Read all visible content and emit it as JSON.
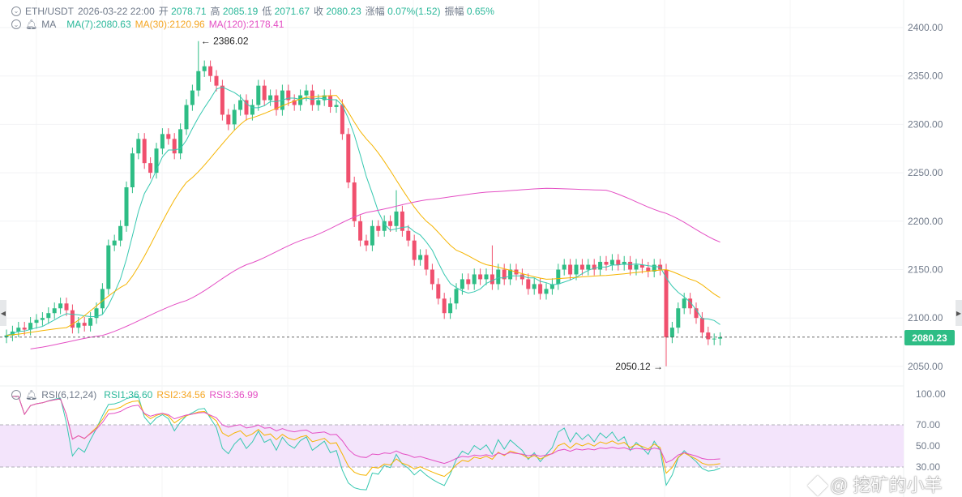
{
  "header": {
    "symbol": "ETH/USDT",
    "datetime": "2026-03-22 22:00",
    "open_label": "开",
    "open": "2078.71",
    "high_label": "高",
    "high": "2085.19",
    "low_label": "低",
    "low": "2071.67",
    "close_label": "收",
    "close": "2080.23",
    "change_label": "涨幅",
    "change": "0.07%(1.52)",
    "amplitude_label": "振幅",
    "amplitude": "0.65%"
  },
  "ma_legend": {
    "name": "MA",
    "ma7": "MA(7):2080.63",
    "ma30": "MA(30):2120.96",
    "ma120": "MA(120):2178.41"
  },
  "rsi_legend": {
    "name": "RSI(6,12,24)",
    "rsi1": "RSI1:36.60",
    "rsi2": "RSI2:34.56",
    "rsi3": "RSI3:36.99"
  },
  "price_axis": [
    "2400.00",
    "2350.00",
    "2300.00",
    "2250.00",
    "2200.00",
    "2150.00",
    "2100.00",
    "2050.00"
  ],
  "rsi_axis": [
    "100.00",
    "70.00",
    "50.00",
    "30.00"
  ],
  "current_price": "2080.23",
  "max_marker": "2386.02",
  "min_marker": "2050.12",
  "watermark": "@ 挖矿的小羊",
  "colors": {
    "up": "#2ebd85",
    "down": "#f0506e",
    "ma7": "#36c8b0",
    "ma30": "#f5b400",
    "ma120": "#e44fc4",
    "rsi_band": "#f3e4fb"
  },
  "chart_data": {
    "type": "candlestick",
    "title": "ETH/USDT",
    "ylim": [
      2050,
      2400
    ],
    "rsi_ylim": [
      0,
      100
    ],
    "open": [
      2080,
      2082,
      2086,
      2090,
      2088,
      2095,
      2098,
      2100,
      2105,
      2110,
      2115,
      2108,
      2090,
      2095,
      2092,
      2100,
      2110,
      2130,
      2175,
      2180,
      2195,
      2235,
      2270,
      2285,
      2260,
      2250,
      2275,
      2290,
      2285,
      2270,
      2295,
      2320,
      2335,
      2355,
      2360,
      2350,
      2340,
      2310,
      2300,
      2315,
      2325,
      2310,
      2320,
      2340,
      2325,
      2330,
      2315,
      2335,
      2325,
      2320,
      2330,
      2335,
      2320,
      2325,
      2330,
      2318,
      2320,
      2290,
      2240,
      2200,
      2180,
      2175,
      2195,
      2190,
      2200,
      2195,
      2210,
      2190,
      2180,
      2160,
      2165,
      2150,
      2135,
      2120,
      2105,
      2115,
      2130,
      2140,
      2135,
      2145,
      2140,
      2145,
      2135,
      2150,
      2140,
      2150,
      2145,
      2140,
      2130,
      2135,
      2125,
      2130,
      2135,
      2150,
      2155,
      2145,
      2155,
      2150,
      2155,
      2150,
      2158,
      2155,
      2160,
      2155,
      2158,
      2150,
      2155,
      2152,
      2148,
      2155,
      2150,
      2080,
      2090,
      2110,
      2120,
      2110,
      2100,
      2085,
      2078,
      2078.71
    ],
    "high": [
      2088,
      2092,
      2096,
      2096,
      2101,
      2104,
      2106,
      2111,
      2116,
      2121,
      2121,
      2114,
      2101,
      2101,
      2106,
      2116,
      2136,
      2181,
      2186,
      2201,
      2241,
      2276,
      2291,
      2291,
      2266,
      2281,
      2296,
      2296,
      2291,
      2301,
      2326,
      2341,
      2386.02,
      2366,
      2366,
      2356,
      2346,
      2316,
      2321,
      2331,
      2331,
      2326,
      2346,
      2346,
      2336,
      2336,
      2341,
      2341,
      2331,
      2336,
      2341,
      2341,
      2331,
      2336,
      2336,
      2326,
      2326,
      2296,
      2246,
      2206,
      2186,
      2201,
      2201,
      2206,
      2206,
      2232,
      2216,
      2196,
      2186,
      2171,
      2171,
      2156,
      2141,
      2126,
      2121,
      2136,
      2146,
      2146,
      2151,
      2151,
      2151,
      2175,
      2156,
      2156,
      2156,
      2156,
      2151,
      2146,
      2141,
      2141,
      2136,
      2141,
      2156,
      2161,
      2161,
      2161,
      2161,
      2161,
      2161,
      2164,
      2164,
      2166,
      2166,
      2164,
      2164,
      2161,
      2161,
      2158,
      2161,
      2161,
      2156,
      2096,
      2116,
      2126,
      2126,
      2116,
      2106,
      2091,
      2084,
      2085.19
    ],
    "low": [
      2074,
      2076,
      2080,
      2082,
      2082,
      2089,
      2092,
      2094,
      2099,
      2104,
      2102,
      2084,
      2084,
      2086,
      2086,
      2094,
      2104,
      2124,
      2169,
      2174,
      2189,
      2229,
      2264,
      2254,
      2244,
      2244,
      2269,
      2279,
      2264,
      2264,
      2289,
      2314,
      2329,
      2349,
      2344,
      2334,
      2304,
      2294,
      2294,
      2309,
      2304,
      2304,
      2314,
      2319,
      2319,
      2309,
      2309,
      2319,
      2314,
      2314,
      2324,
      2314,
      2314,
      2319,
      2312,
      2312,
      2284,
      2234,
      2194,
      2174,
      2169,
      2169,
      2184,
      2184,
      2189,
      2189,
      2184,
      2174,
      2154,
      2154,
      2144,
      2129,
      2114,
      2099,
      2099,
      2109,
      2124,
      2129,
      2129,
      2134,
      2134,
      2129,
      2129,
      2134,
      2134,
      2139,
      2134,
      2124,
      2124,
      2119,
      2119,
      2124,
      2129,
      2144,
      2139,
      2139,
      2144,
      2144,
      2144,
      2144,
      2149,
      2149,
      2149,
      2149,
      2144,
      2144,
      2146,
      2142,
      2142,
      2144,
      2050.12,
      2074,
      2084,
      2104,
      2104,
      2094,
      2079,
      2072,
      2072,
      2071.67
    ],
    "close": [
      2082,
      2086,
      2090,
      2088,
      2095,
      2098,
      2100,
      2105,
      2110,
      2115,
      2108,
      2090,
      2095,
      2092,
      2100,
      2110,
      2130,
      2175,
      2180,
      2195,
      2235,
      2270,
      2285,
      2260,
      2250,
      2275,
      2290,
      2285,
      2270,
      2295,
      2320,
      2335,
      2355,
      2360,
      2350,
      2340,
      2310,
      2300,
      2315,
      2325,
      2310,
      2320,
      2340,
      2325,
      2330,
      2315,
      2335,
      2325,
      2320,
      2330,
      2335,
      2320,
      2325,
      2330,
      2318,
      2320,
      2290,
      2240,
      2200,
      2180,
      2175,
      2195,
      2190,
      2200,
      2195,
      2210,
      2190,
      2180,
      2160,
      2165,
      2150,
      2135,
      2120,
      2105,
      2115,
      2130,
      2140,
      2135,
      2145,
      2140,
      2145,
      2135,
      2150,
      2140,
      2150,
      2145,
      2140,
      2130,
      2135,
      2125,
      2130,
      2135,
      2150,
      2155,
      2145,
      2155,
      2150,
      2155,
      2150,
      2158,
      2155,
      2160,
      2155,
      2158,
      2150,
      2155,
      2152,
      2148,
      2155,
      2150,
      2080,
      2090,
      2110,
      2120,
      2110,
      2100,
      2085,
      2078,
      2078.71,
      2080.23
    ],
    "ma30": [
      [
        0,
        2082
      ],
      [
        10,
        2090
      ],
      [
        20,
        2135
      ],
      [
        30,
        2240
      ],
      [
        40,
        2305
      ],
      [
        50,
        2328
      ],
      [
        55,
        2330
      ],
      [
        60,
        2285
      ],
      [
        70,
        2200
      ],
      [
        75,
        2170
      ],
      [
        80,
        2155
      ],
      [
        90,
        2140
      ],
      [
        100,
        2144
      ],
      [
        110,
        2150
      ],
      [
        115,
        2138
      ],
      [
        119,
        2120.96
      ]
    ],
    "ma120": [
      [
        4,
        2068
      ],
      [
        16,
        2082
      ],
      [
        30,
        2118
      ],
      [
        40,
        2155
      ],
      [
        50,
        2182
      ],
      [
        60,
        2209
      ],
      [
        70,
        2222
      ],
      [
        80,
        2230
      ],
      [
        90,
        2234
      ],
      [
        100,
        2232
      ],
      [
        110,
        2208
      ],
      [
        119,
        2178.41
      ]
    ]
  }
}
